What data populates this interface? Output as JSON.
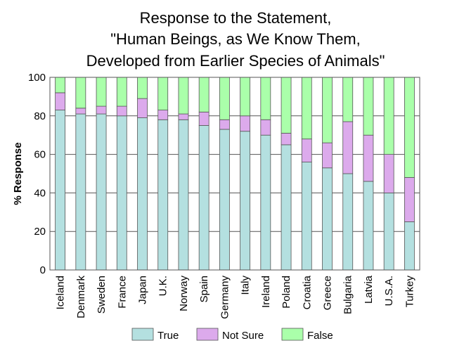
{
  "chart_data": {
    "type": "stacked_bar",
    "title": [
      "Response to the Statement,",
      "\"Human Beings, as We Know Them,",
      "Developed from Earlier Species of Animals\""
    ],
    "y_label": "% Response",
    "categories": [
      "Iceland",
      "Denmark",
      "Sweden",
      "France",
      "Japan",
      "U.K.",
      "Norway",
      "Spain",
      "Germany",
      "Italy",
      "Ireland",
      "Poland",
      "Croatia",
      "Greece",
      "Bulgaria",
      "Latvia",
      "U.S.A.",
      "Turkey"
    ],
    "series": [
      {
        "name": "True",
        "color": "#b4e0e0",
        "values": [
          83,
          81,
          81,
          80,
          79,
          78,
          78,
          75,
          73,
          72,
          70,
          65,
          56,
          53,
          50,
          46,
          40,
          25
        ]
      },
      {
        "name": "Not Sure",
        "color": "#dcaaec",
        "values": [
          9,
          3,
          4,
          5,
          10,
          5,
          3,
          7,
          5,
          8,
          8,
          6,
          12,
          13,
          27,
          24,
          20,
          23
        ]
      },
      {
        "name": "False",
        "color": "#aaffaa",
        "values": [
          8,
          16,
          15,
          15,
          11,
          17,
          19,
          18,
          22,
          20,
          22,
          29,
          32,
          34,
          23,
          30,
          40,
          52
        ]
      }
    ],
    "ylim": [
      0,
      100
    ],
    "yticks": [
      0,
      20,
      40,
      60,
      80,
      100
    ],
    "grid": true,
    "legend": "bottom"
  }
}
